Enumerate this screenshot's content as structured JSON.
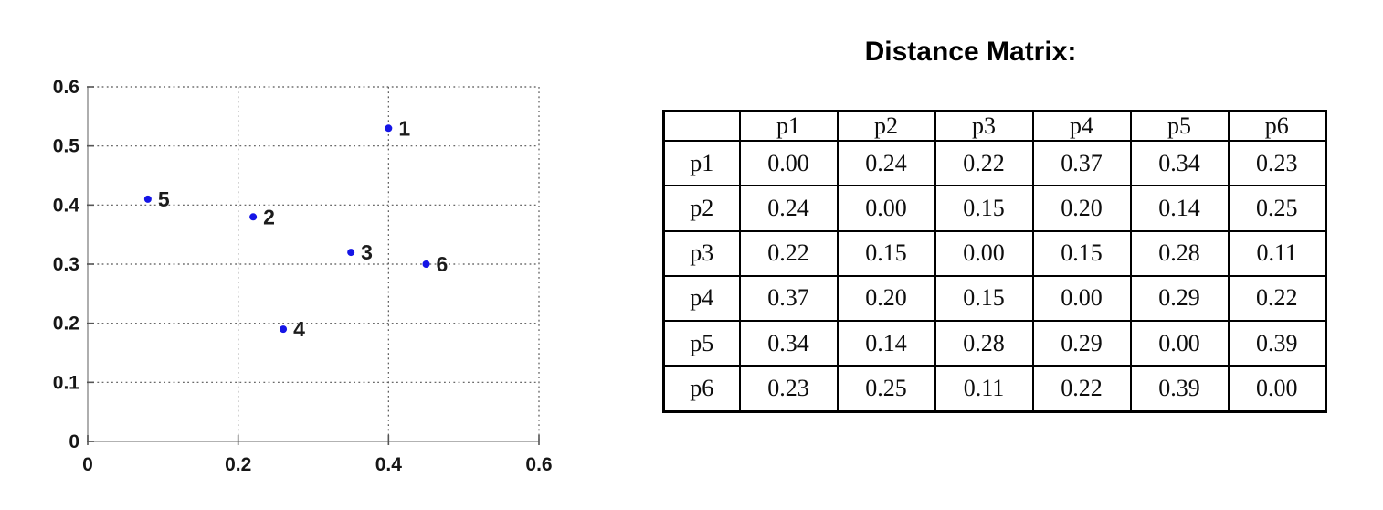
{
  "chart_data": [
    {
      "type": "scatter",
      "title": "",
      "xlabel": "",
      "ylabel": "",
      "xlim": [
        0,
        0.6
      ],
      "ylim": [
        0,
        0.6
      ],
      "xticks": [
        0,
        0.2,
        0.4,
        0.6
      ],
      "yticks": [
        0,
        0.1,
        0.2,
        0.3,
        0.4,
        0.5,
        0.6
      ],
      "grid": true,
      "legend": false,
      "marker_color": "#1515e6",
      "points": [
        {
          "label": "1",
          "x": 0.4,
          "y": 0.53
        },
        {
          "label": "2",
          "x": 0.22,
          "y": 0.38
        },
        {
          "label": "3",
          "x": 0.35,
          "y": 0.32
        },
        {
          "label": "4",
          "x": 0.26,
          "y": 0.19
        },
        {
          "label": "5",
          "x": 0.08,
          "y": 0.41
        },
        {
          "label": "6",
          "x": 0.45,
          "y": 0.3
        }
      ]
    },
    {
      "type": "table",
      "title": "Distance Matrix:",
      "col_headers": [
        "",
        "p1",
        "p2",
        "p3",
        "p4",
        "p5",
        "p6"
      ],
      "rows": [
        {
          "label": "p1",
          "values": [
            "0.00",
            "0.24",
            "0.22",
            "0.37",
            "0.34",
            "0.23"
          ]
        },
        {
          "label": "p2",
          "values": [
            "0.24",
            "0.00",
            "0.15",
            "0.20",
            "0.14",
            "0.25"
          ]
        },
        {
          "label": "p3",
          "values": [
            "0.22",
            "0.15",
            "0.00",
            "0.15",
            "0.28",
            "0.11"
          ]
        },
        {
          "label": "p4",
          "values": [
            "0.37",
            "0.20",
            "0.15",
            "0.00",
            "0.29",
            "0.22"
          ]
        },
        {
          "label": "p5",
          "values": [
            "0.34",
            "0.14",
            "0.28",
            "0.29",
            "0.00",
            "0.39"
          ]
        },
        {
          "label": "p6",
          "values": [
            "0.23",
            "0.25",
            "0.11",
            "0.22",
            "0.39",
            "0.00"
          ]
        }
      ]
    }
  ],
  "colors": {
    "marker": "#1515e6",
    "grid": "#555555",
    "axis": "#999999",
    "text": "#161616",
    "table_border": "#000000"
  }
}
